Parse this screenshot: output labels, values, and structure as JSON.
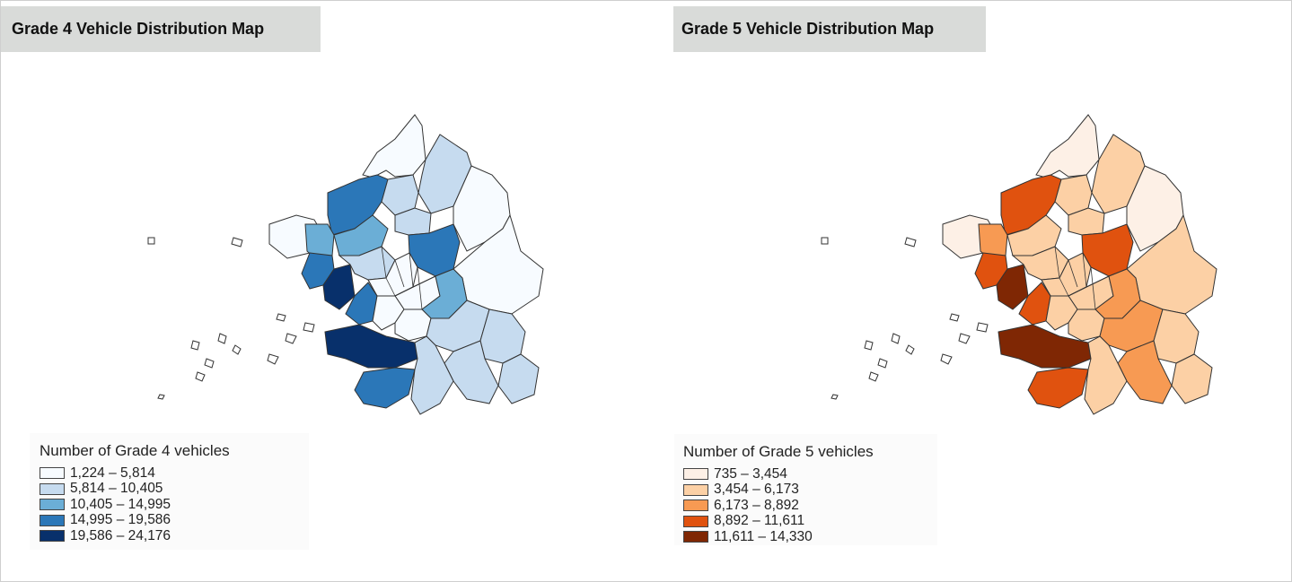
{
  "left_panel": {
    "title": "Grade 4 Vehicle Distribution Map",
    "legend_title": "Number of Grade 4 vehicles",
    "classes": [
      {
        "label": "1,224 – 5,814",
        "color": "#f7fbff"
      },
      {
        "label": "5,814 – 10,405",
        "color": "#c6dbef"
      },
      {
        "label": "10,405 – 14,995",
        "color": "#6baed6"
      },
      {
        "label": "14,995 – 19,586",
        "color": "#2b77b8"
      },
      {
        "label": "19,586 – 24,176",
        "color": "#08306b"
      }
    ]
  },
  "right_panel": {
    "title": "Grade 5 Vehicle Distribution Map",
    "legend_title": "Number of Grade 5 vehicles",
    "classes": [
      {
        "label": "735 – 3,454",
        "color": "#fdf0e6"
      },
      {
        "label": "3,454 – 6,173",
        "color": "#fcd0a5"
      },
      {
        "label": "6,173 – 8,892",
        "color": "#f79a53"
      },
      {
        "label": "8,892 – 11,611",
        "color": "#e0520f"
      },
      {
        "label": "11,611 – 14,330",
        "color": "#7f2704"
      }
    ]
  }
}
